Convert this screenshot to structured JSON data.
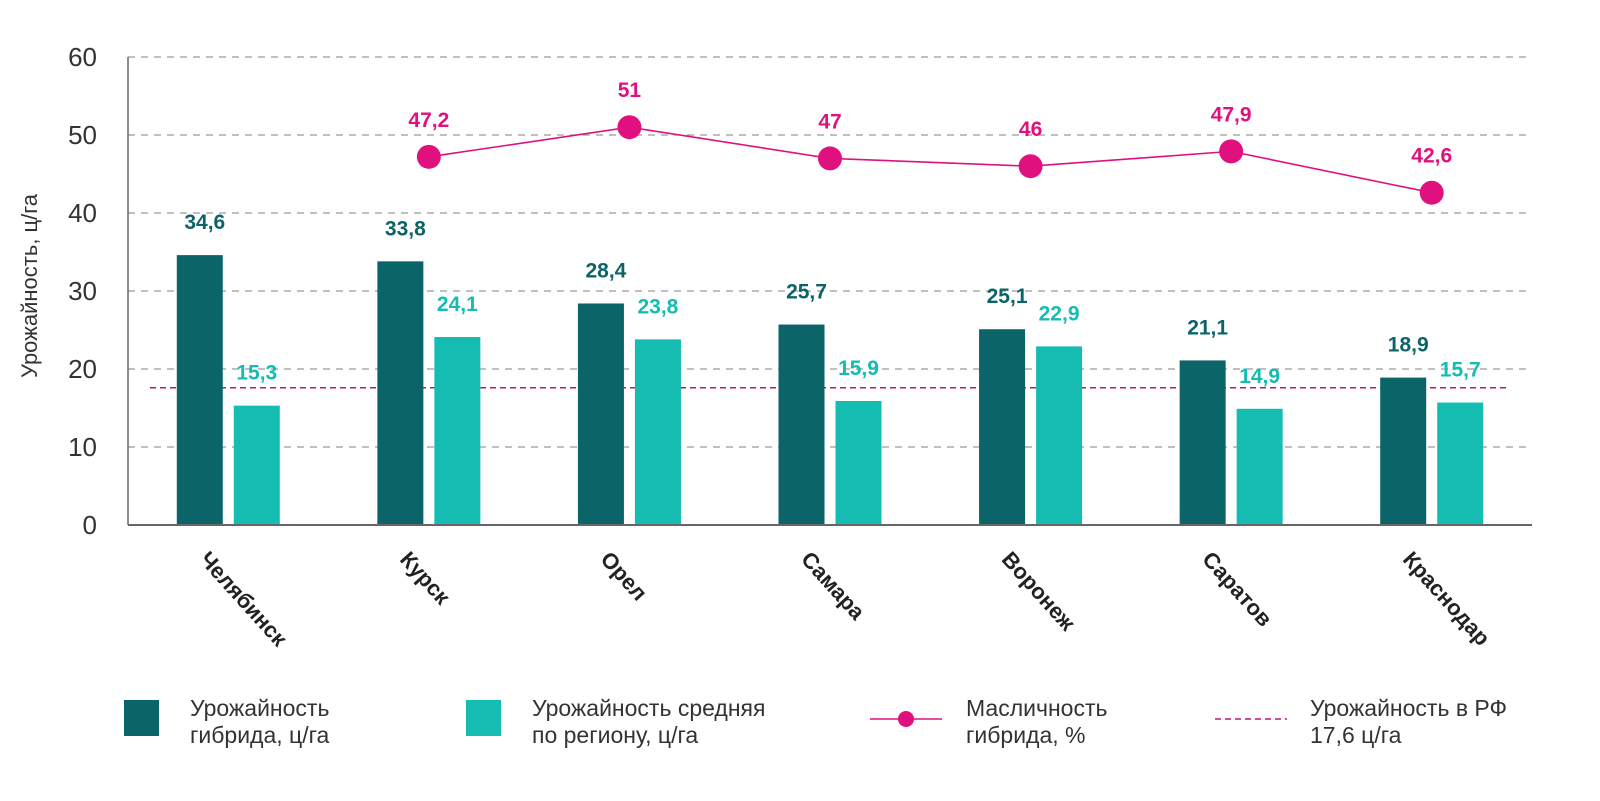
{
  "chart_data": {
    "type": "bar",
    "ylabel": "Урожайность, ц/га",
    "ylim": [
      0,
      60
    ],
    "yticks": [
      0,
      10,
      20,
      30,
      40,
      50,
      60
    ],
    "grid": "horizontal-dashed",
    "categories": [
      "Челябинск",
      "Курск",
      "Орел",
      "Самара",
      "Воронеж",
      "Саратов",
      "Краснодар"
    ],
    "series": [
      {
        "name": "Урожайность гибрида, ц/га",
        "legend_lines": [
          "Урожайность",
          "гибрида, ц/га"
        ],
        "type": "bar",
        "color": "#0b6468",
        "values": [
          34.6,
          33.8,
          28.4,
          25.7,
          25.1,
          21.1,
          18.9
        ],
        "labels": [
          "34,6",
          "33,8",
          "28,4",
          "25,7",
          "25,1",
          "21,1",
          "18,9"
        ]
      },
      {
        "name": "Урожайность средняя по региону, ц/га",
        "legend_lines": [
          "Урожайность средняя",
          "по региону, ц/га"
        ],
        "type": "bar",
        "color": "#15bcb1",
        "values": [
          15.3,
          24.1,
          23.8,
          15.9,
          22.9,
          14.9,
          15.7
        ],
        "labels": [
          "15,3",
          "24,1",
          "23,8",
          "15,9",
          "22,9",
          "14,9",
          "15,7"
        ]
      },
      {
        "name": "Масличность гибрида, %",
        "legend_lines": [
          "Масличность",
          "гибрида, %"
        ],
        "type": "line",
        "color": "#e0117f",
        "values": [
          null,
          47.2,
          51,
          47,
          46,
          47.9,
          42.6
        ],
        "labels": [
          "",
          "47,2",
          "51",
          "47",
          "46",
          "47,9",
          "42,6"
        ]
      }
    ],
    "reference_line": {
      "name": "Урожайность в РФ 17,6 ц/га",
      "legend_lines": [
        "Урожайность в РФ",
        "17,6 ц/га"
      ],
      "value": 17.6,
      "color": "#b5177c",
      "style": "dashed"
    },
    "legend_position": "bottom"
  }
}
